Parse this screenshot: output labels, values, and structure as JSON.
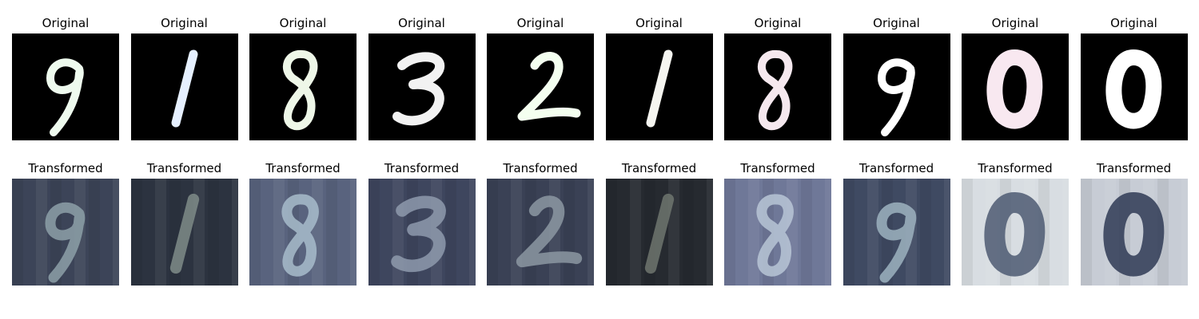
{
  "row_titles": {
    "original": "Original",
    "transformed": "Transformed"
  },
  "panels": [
    {
      "digit": "9",
      "original_color": "#eefaee",
      "trans_bg": "#3c4458",
      "trans_fg": "#8da0a8"
    },
    {
      "digit": "1",
      "original_color": "#e6f0ff",
      "trans_bg": "#2c3340",
      "trans_fg": "#7f8c88"
    },
    {
      "digit": "8",
      "original_color": "#eef7e8",
      "trans_bg": "#59637e",
      "trans_fg": "#a8bccb"
    },
    {
      "digit": "3",
      "original_color": "#f2f2f2",
      "trans_bg": "#3e465e",
      "trans_fg": "#8e9aad"
    },
    {
      "digit": "2",
      "original_color": "#f4fff0",
      "trans_bg": "#3a4155",
      "trans_fg": "#8c98a2"
    },
    {
      "digit": "1",
      "original_color": "#f5f5f0",
      "trans_bg": "#262a30",
      "trans_fg": "#6e766e"
    },
    {
      "digit": "8",
      "original_color": "#f5e8ee",
      "trans_bg": "#6f7898",
      "trans_fg": "#b9c6d6"
    },
    {
      "digit": "9",
      "original_color": "#ffffff",
      "trans_bg": "#3f4a62",
      "trans_fg": "#9eb3bf"
    },
    {
      "digit": "0",
      "original_color": "#f8e8f0",
      "trans_bg": "#d8dde2",
      "trans_fg": "#4e5a72"
    },
    {
      "digit": "0",
      "original_color": "#ffffff",
      "trans_bg": "#c7ccd5",
      "trans_fg": "#2f3a55"
    }
  ]
}
